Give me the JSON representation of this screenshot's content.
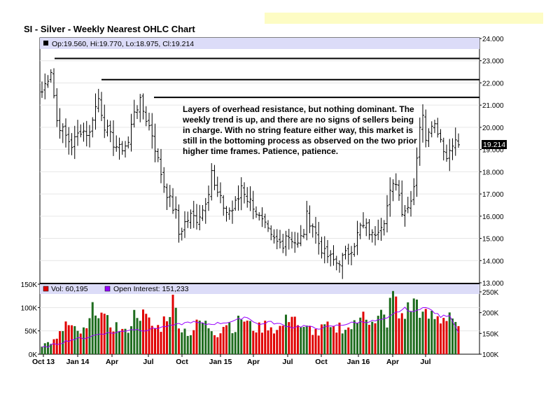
{
  "title": "SI - Silver - Weekly Nearest OHLC Chart",
  "ohlc_legend": "Op:19.560, Hi:19.770, Lo:18.975, Cl:19.214",
  "last_price_label": "19.214",
  "annotation_lines": [
    "Layers of overhead resistance, but nothing dominant.  The",
    "weekly trend is up, and there are no signs of sellers being",
    "in charge.  With no string feature either way, this market is",
    "still in the bottoming process as observed on the two prior",
    "higher time frames.  Patience, patience."
  ],
  "volume_legend": "Vol: 60,195",
  "oi_legend": "Open Interest: 151,233",
  "colors": {
    "bars": "#000000",
    "vol_up": "#1f6d1f",
    "vol_down": "#e00000",
    "oi_line": "#9900ff",
    "legend_bg": "#dcdcf8",
    "yellow_strip": "#fdfcc4"
  },
  "chart_data": [
    {
      "type": "ohlc",
      "title": "SI - Silver - Weekly Nearest OHLC Chart",
      "x_tick_labels": [
        "Oct 13",
        "Jan 14",
        "Apr",
        "Jul",
        "Oct",
        "Jan 15",
        "Apr",
        "Jul",
        "Oct",
        "Jan 16",
        "Apr",
        "Jul"
      ],
      "y_ticks": [
        "13.000",
        "14.000",
        "15.000",
        "16.000",
        "17.000",
        "18.000",
        "19.000",
        "20.000",
        "21.000",
        "22.000",
        "23.000",
        "24.000"
      ],
      "ylim": [
        13,
        24
      ],
      "resistance_levels": [
        23.1,
        22.15,
        21.35
      ],
      "last_close": 19.214,
      "close_path": [
        [
          0,
          21.6
        ],
        [
          3,
          22.6
        ],
        [
          5,
          20.3
        ],
        [
          8,
          19.6
        ],
        [
          10,
          19.2
        ],
        [
          13,
          19.9
        ],
        [
          16,
          19.7
        ],
        [
          17,
          20.5
        ],
        [
          19,
          21.3
        ],
        [
          21,
          20.1
        ],
        [
          24,
          19.3
        ],
        [
          26,
          19.0
        ],
        [
          29,
          19.3
        ],
        [
          31,
          20.8
        ],
        [
          33,
          21.1
        ],
        [
          35,
          20.4
        ],
        [
          37,
          19.7
        ],
        [
          39,
          18.5
        ],
        [
          41,
          17.4
        ],
        [
          43,
          16.7
        ],
        [
          45,
          16.1
        ],
        [
          46,
          15.2
        ],
        [
          48,
          15.7
        ],
        [
          50,
          16.0
        ],
        [
          52,
          15.9
        ],
        [
          54,
          16.3
        ],
        [
          56,
          17.2
        ],
        [
          57,
          18.1
        ],
        [
          58,
          17.3
        ],
        [
          60,
          16.7
        ],
        [
          62,
          16.2
        ],
        [
          64,
          16.3
        ],
        [
          66,
          16.8
        ],
        [
          67,
          17.4
        ],
        [
          69,
          16.8
        ],
        [
          71,
          16.5
        ],
        [
          73,
          15.9
        ],
        [
          75,
          15.5
        ],
        [
          77,
          15.0
        ],
        [
          79,
          14.8
        ],
        [
          81,
          14.8
        ],
        [
          82,
          15.2
        ],
        [
          84,
          15.0
        ],
        [
          86,
          14.7
        ],
        [
          88,
          15.3
        ],
        [
          89,
          16.0
        ],
        [
          91,
          15.6
        ],
        [
          93,
          14.8
        ],
        [
          95,
          14.3
        ],
        [
          97,
          14.1
        ],
        [
          99,
          13.9
        ],
        [
          101,
          14.1
        ],
        [
          103,
          14.4
        ],
        [
          105,
          14.8
        ],
        [
          107,
          15.5
        ],
        [
          109,
          15.5
        ],
        [
          111,
          15.1
        ],
        [
          113,
          15.5
        ],
        [
          115,
          15.9
        ],
        [
          117,
          17.0
        ],
        [
          119,
          17.6
        ],
        [
          121,
          16.3
        ],
        [
          123,
          16.4
        ],
        [
          125,
          17.4
        ],
        [
          127,
          20.1
        ],
        [
          128,
          20.4
        ],
        [
          129,
          19.6
        ],
        [
          131,
          20.3
        ],
        [
          133,
          19.9
        ],
        [
          135,
          19.1
        ],
        [
          136,
          18.6
        ],
        [
          138,
          19.4
        ],
        [
          140,
          19.214
        ]
      ]
    },
    {
      "type": "bar",
      "title": "",
      "y_ticks_left": [
        "0K",
        "50K",
        "100K",
        "150K"
      ],
      "y_ticks_right": [
        "100K",
        "150K",
        "200K",
        "250K"
      ],
      "ylim_volume": [
        0,
        150000
      ],
      "ylim_open_interest": [
        100000,
        260000
      ],
      "last_volume": 60195,
      "last_open_interest": 151233,
      "volume_path": [
        [
          0,
          20000
        ],
        [
          5,
          30000
        ],
        [
          8,
          65000
        ],
        [
          12,
          45000
        ],
        [
          15,
          50000
        ],
        [
          18,
          110000
        ],
        [
          21,
          70000
        ],
        [
          25,
          60000
        ],
        [
          28,
          45000
        ],
        [
          32,
          95000
        ],
        [
          35,
          75000
        ],
        [
          38,
          55000
        ],
        [
          40,
          60000
        ],
        [
          44,
          110000
        ],
        [
          47,
          55000
        ],
        [
          50,
          45000
        ],
        [
          53,
          70000
        ],
        [
          56,
          60000
        ],
        [
          59,
          45000
        ],
        [
          62,
          70000
        ],
        [
          65,
          55000
        ],
        [
          67,
          80000
        ],
        [
          70,
          60000
        ],
        [
          73,
          55000
        ],
        [
          76,
          65000
        ],
        [
          79,
          50000
        ],
        [
          82,
          70000
        ],
        [
          84,
          95000
        ],
        [
          87,
          50000
        ],
        [
          90,
          55000
        ],
        [
          93,
          45000
        ],
        [
          95,
          60000
        ],
        [
          98,
          50000
        ],
        [
          100,
          60000
        ],
        [
          103,
          55000
        ],
        [
          106,
          65000
        ],
        [
          108,
          110000
        ],
        [
          110,
          70000
        ],
        [
          112,
          60000
        ],
        [
          114,
          85000
        ],
        [
          116,
          70000
        ],
        [
          118,
          135000
        ],
        [
          120,
          80000
        ],
        [
          123,
          95000
        ],
        [
          126,
          115000
        ],
        [
          128,
          80000
        ],
        [
          131,
          80000
        ],
        [
          134,
          75000
        ],
        [
          137,
          90000
        ],
        [
          140,
          60195
        ]
      ],
      "open_interest_path": [
        [
          0,
          115000
        ],
        [
          5,
          125000
        ],
        [
          10,
          135000
        ],
        [
          15,
          140000
        ],
        [
          20,
          150000
        ],
        [
          25,
          152000
        ],
        [
          30,
          160000
        ],
        [
          35,
          158000
        ],
        [
          40,
          165000
        ],
        [
          45,
          170000
        ],
        [
          50,
          178000
        ],
        [
          55,
          172000
        ],
        [
          60,
          175000
        ],
        [
          65,
          180000
        ],
        [
          68,
          190000
        ],
        [
          70,
          185000
        ],
        [
          73,
          170000
        ],
        [
          76,
          178000
        ],
        [
          80,
          172000
        ],
        [
          84,
          165000
        ],
        [
          88,
          168000
        ],
        [
          92,
          162000
        ],
        [
          96,
          165000
        ],
        [
          100,
          170000
        ],
        [
          104,
          175000
        ],
        [
          108,
          178000
        ],
        [
          112,
          180000
        ],
        [
          116,
          185000
        ],
        [
          119,
          200000
        ],
        [
          122,
          210000
        ],
        [
          125,
          200000
        ],
        [
          128,
          215000
        ],
        [
          131,
          205000
        ],
        [
          134,
          190000
        ],
        [
          137,
          195000
        ],
        [
          140,
          151233
        ]
      ]
    }
  ]
}
